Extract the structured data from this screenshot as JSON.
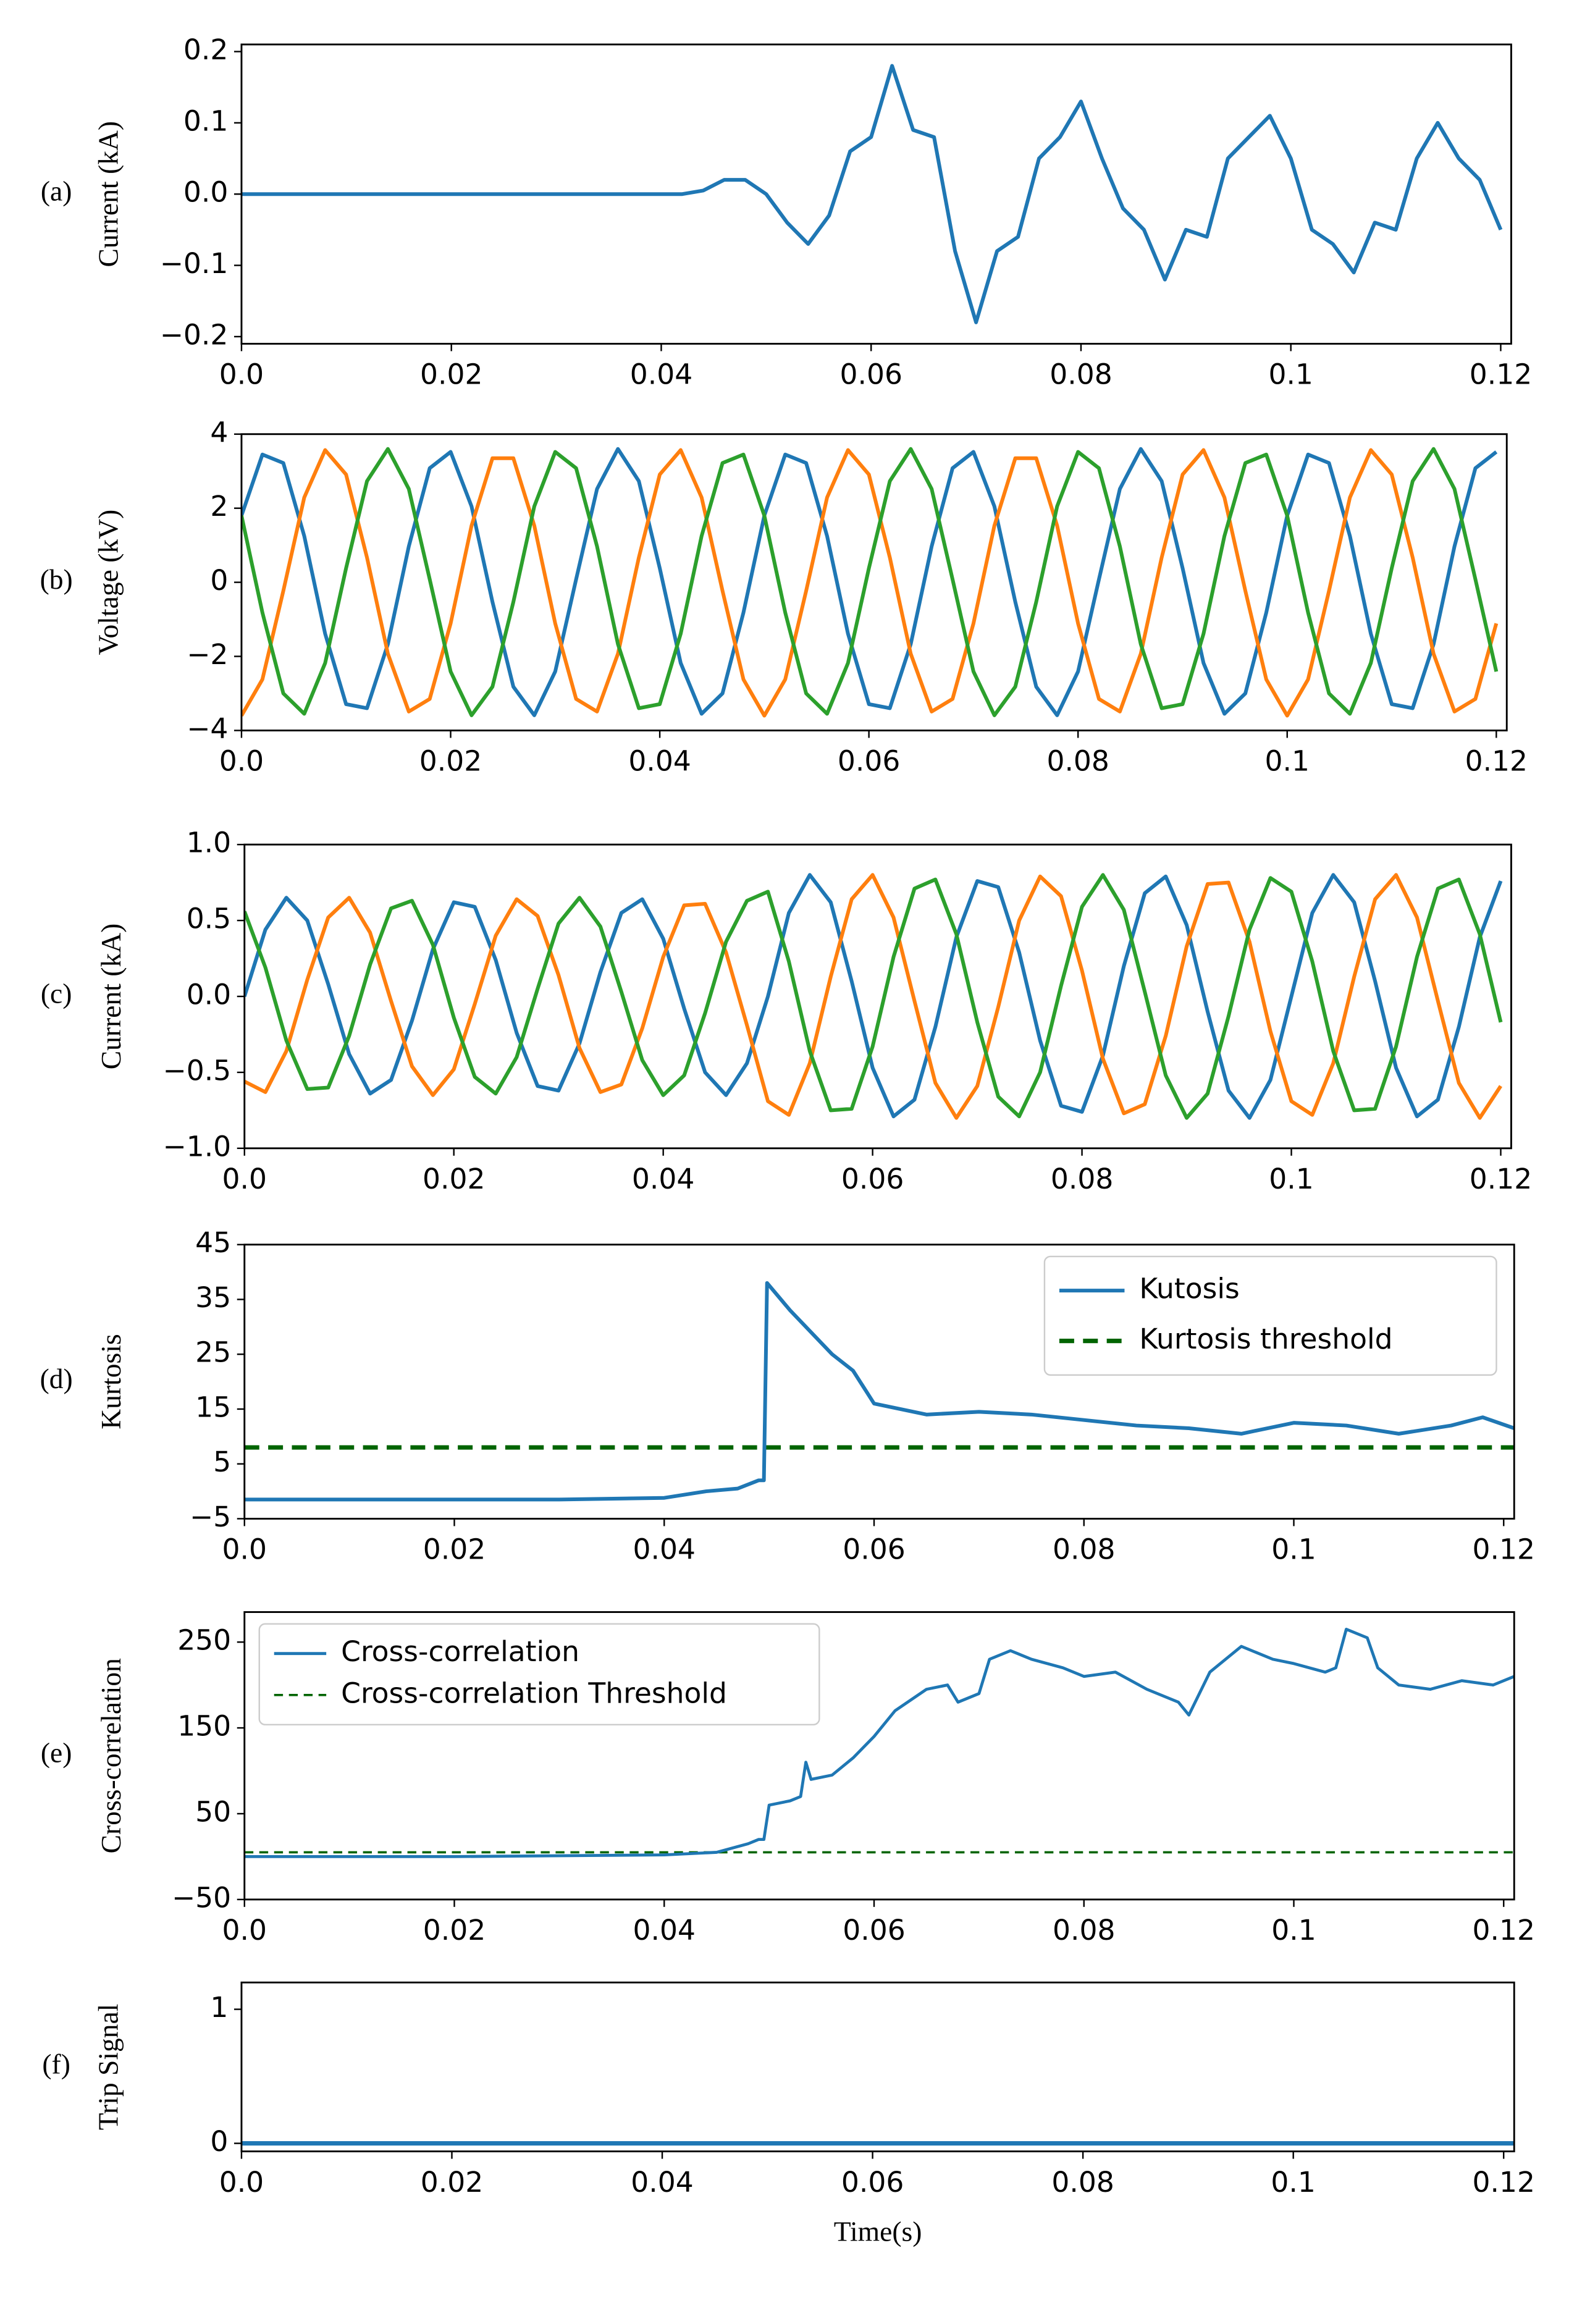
{
  "chart_data": [
    {
      "type": "line",
      "panel_label": "(a)",
      "ylabel": "Current (kA)",
      "xlim": [
        0,
        0.121
      ],
      "xticks": [
        {
          "value": 0,
          "label": "0.0"
        },
        0.02,
        0.04,
        0.06,
        0.08,
        0.1,
        0.12
      ],
      "ylim": [
        -0.21,
        0.21
      ],
      "yticks": [
        {
          "value": -0.2,
          "label": "−0.2"
        },
        {
          "value": -0.1,
          "label": "−0.1"
        },
        {
          "value": 0,
          "label": "0.0"
        },
        0.1,
        0.2
      ],
      "x": [
        0,
        0.002,
        0.004,
        0.006,
        0.008,
        0.01,
        0.012,
        0.014,
        0.016,
        0.018,
        0.02,
        0.022,
        0.024,
        0.026,
        0.028,
        0.03,
        0.032,
        0.034,
        0.036,
        0.038,
        0.04,
        0.042,
        0.044,
        0.046,
        0.048,
        0.05,
        0.052,
        0.054,
        0.056,
        0.058,
        0.06,
        0.062,
        0.064,
        0.066,
        0.068,
        0.07,
        0.072,
        0.074,
        0.076,
        0.078,
        0.08,
        0.082,
        0.084,
        0.086,
        0.088,
        0.09,
        0.092,
        0.094,
        0.096,
        0.098,
        0.1,
        0.102,
        0.104,
        0.106,
        0.108,
        0.11,
        0.112,
        0.114,
        0.116,
        0.118,
        0.12
      ],
      "series": [
        {
          "color": "#1f77b4",
          "values": [
            0,
            0,
            0,
            0,
            0,
            0,
            0,
            0,
            0,
            0,
            0,
            0,
            0,
            0,
            0,
            0,
            0,
            0,
            0,
            0,
            0,
            0,
            0.005,
            0.02,
            0.02,
            0,
            -0.04,
            -0.07,
            -0.03,
            0.06,
            0.08,
            0.18,
            0.09,
            0.08,
            -0.08,
            -0.18,
            -0.08,
            -0.06,
            0.05,
            0.08,
            0.13,
            0.05,
            -0.02,
            -0.05,
            -0.12,
            -0.05,
            -0.06,
            0.05,
            0.08,
            0.11,
            0.05,
            -0.05,
            -0.07,
            -0.11,
            -0.04,
            -0.05,
            0.05,
            0.1,
            0.05,
            0.02,
            -0.05
          ]
        }
      ]
    },
    {
      "type": "line",
      "panel_label": "(b)",
      "ylabel": "Voltage (kV)",
      "xlim": [
        0,
        0.121
      ],
      "xticks": [
        {
          "value": 0,
          "label": "0.0"
        },
        0.02,
        0.04,
        0.06,
        0.08,
        0.1,
        0.12
      ],
      "ylim": [
        -4,
        4
      ],
      "yticks": [
        {
          "value": -4,
          "label": "−4"
        },
        {
          "value": -2,
          "label": "−2"
        },
        0,
        2,
        4
      ],
      "x": [
        0,
        0.002,
        0.004,
        0.006,
        0.008,
        0.01,
        0.012,
        0.014,
        0.016,
        0.018,
        0.02,
        0.022,
        0.024,
        0.026,
        0.028,
        0.03,
        0.032,
        0.034,
        0.036,
        0.038,
        0.04,
        0.042,
        0.044,
        0.046,
        0.048,
        0.05,
        0.052,
        0.054,
        0.056,
        0.058,
        0.06,
        0.062,
        0.064,
        0.066,
        0.068,
        0.07,
        0.072,
        0.074,
        0.076,
        0.078,
        0.08,
        0.082,
        0.084,
        0.086,
        0.088,
        0.09,
        0.092,
        0.094,
        0.096,
        0.098,
        0.1,
        0.102,
        0.104,
        0.106,
        0.108,
        0.11,
        0.112,
        0.114,
        0.116,
        0.118,
        0.12
      ],
      "series": [
        {
          "color": "#1f77b4",
          "values": [
            1.8,
            3.45,
            3.22,
            1.25,
            -1.39,
            -3.29,
            -3.4,
            -1.67,
            0.97,
            3.08,
            3.52,
            2.05,
            -0.53,
            -2.82,
            -3.59,
            -2.41,
            0.08,
            2.52,
            3.6,
            2.73,
            0.38,
            -2.18,
            -3.55,
            -3.0,
            -0.82,
            1.8,
            3.45,
            3.22,
            1.25,
            -1.39,
            -3.29,
            -3.4,
            -1.67,
            0.97,
            3.08,
            3.52,
            2.05,
            -0.53,
            -2.82,
            -3.59,
            -2.41,
            0.08,
            2.52,
            3.6,
            2.73,
            0.38,
            -2.18,
            -3.55,
            -3.0,
            -0.82,
            1.8,
            3.45,
            3.22,
            1.25,
            -1.39,
            -3.29,
            -3.4,
            -1.67,
            0.97,
            3.08,
            3.52
          ]
        },
        {
          "color": "#ff7f0e",
          "values": [
            -3.6,
            -2.62,
            -0.23,
            2.29,
            3.57,
            2.91,
            0.67,
            -1.93,
            -3.49,
            -3.15,
            -1.11,
            1.53,
            3.35,
            3.35,
            1.53,
            -1.11,
            -3.15,
            -3.49,
            -1.93,
            0.67,
            2.91,
            3.57,
            2.29,
            -0.23,
            -2.62,
            -3.6,
            -2.62,
            -0.23,
            2.29,
            3.57,
            2.91,
            0.67,
            -1.93,
            -3.49,
            -3.15,
            -1.11,
            1.53,
            3.35,
            3.35,
            1.53,
            -1.11,
            -3.15,
            -3.49,
            -1.93,
            0.67,
            2.91,
            3.57,
            2.29,
            -0.23,
            -2.62,
            -3.6,
            -2.62,
            -0.23,
            2.29,
            3.57,
            2.91,
            0.67,
            -1.93,
            -3.49,
            -3.15,
            -1.11
          ]
        },
        {
          "color": "#2ca02c",
          "values": [
            1.8,
            -0.82,
            -3.0,
            -3.55,
            -2.18,
            0.38,
            2.73,
            3.6,
            2.52,
            0.08,
            -2.41,
            -3.59,
            -2.82,
            -0.53,
            2.05,
            3.52,
            3.08,
            0.97,
            -1.67,
            -3.4,
            -3.29,
            -1.39,
            1.25,
            3.22,
            3.45,
            1.8,
            -0.82,
            -3.0,
            -3.55,
            -2.18,
            0.38,
            2.73,
            3.6,
            2.52,
            0.08,
            -2.41,
            -3.59,
            -2.82,
            -0.53,
            2.05,
            3.52,
            3.08,
            0.97,
            -1.67,
            -3.4,
            -3.29,
            -1.39,
            1.25,
            3.22,
            3.45,
            1.8,
            -0.82,
            -3.0,
            -3.55,
            -2.18,
            0.38,
            2.73,
            3.6,
            2.52,
            0.08,
            -2.41
          ]
        }
      ]
    },
    {
      "type": "line",
      "panel_label": "(c)",
      "ylabel": "Current (kA)",
      "xlim": [
        0,
        0.121
      ],
      "xticks": [
        {
          "value": 0,
          "label": "0.0"
        },
        0.02,
        0.04,
        0.06,
        0.08,
        0.1,
        0.12
      ],
      "ylim": [
        -1,
        1
      ],
      "yticks": [
        {
          "value": -1,
          "label": "−1.0"
        },
        {
          "value": -0.5,
          "label": "−0.5"
        },
        {
          "value": 0,
          "label": "0.0"
        },
        0.5,
        {
          "value": 1,
          "label": "1.0"
        }
      ],
      "x": [
        0,
        0.002,
        0.004,
        0.006,
        0.008,
        0.01,
        0.012,
        0.014,
        0.016,
        0.018,
        0.02,
        0.022,
        0.024,
        0.026,
        0.028,
        0.03,
        0.032,
        0.034,
        0.036,
        0.038,
        0.04,
        0.042,
        0.044,
        0.046,
        0.048,
        0.05,
        0.052,
        0.054,
        0.056,
        0.058,
        0.06,
        0.062,
        0.064,
        0.066,
        0.068,
        0.07,
        0.072,
        0.074,
        0.076,
        0.078,
        0.08,
        0.082,
        0.084,
        0.086,
        0.088,
        0.09,
        0.092,
        0.094,
        0.096,
        0.098,
        0.1,
        0.102,
        0.104,
        0.106,
        0.108,
        0.11,
        0.112,
        0.114,
        0.116,
        0.118,
        0.12
      ],
      "series": [
        {
          "color": "#1f77b4",
          "values": [
            0,
            0.44,
            0.65,
            0.5,
            0.08,
            -0.38,
            -0.64,
            -0.55,
            -0.16,
            0.31,
            0.62,
            0.59,
            0.24,
            -0.24,
            -0.59,
            -0.62,
            -0.31,
            0.16,
            0.55,
            0.64,
            0.38,
            -0.08,
            -0.5,
            -0.65,
            -0.44,
            0,
            0.55,
            0.8,
            0.62,
            0.1,
            -0.47,
            -0.79,
            -0.68,
            -0.2,
            0.39,
            0.76,
            0.72,
            0.29,
            -0.29,
            -0.72,
            -0.76,
            -0.39,
            0.2,
            0.68,
            0.79,
            0.47,
            -0.1,
            -0.62,
            -0.8,
            -0.55,
            0,
            0.55,
            0.8,
            0.62,
            0.1,
            -0.47,
            -0.79,
            -0.68,
            -0.2,
            0.39,
            0.76
          ]
        },
        {
          "color": "#ff7f0e",
          "values": [
            -0.56,
            -0.63,
            -0.36,
            0.11,
            0.52,
            0.65,
            0.42,
            -0.03,
            -0.46,
            -0.65,
            -0.48,
            -0.05,
            0.4,
            0.64,
            0.53,
            0.14,
            -0.34,
            -0.63,
            -0.58,
            -0.21,
            0.26,
            0.6,
            0.61,
            0.29,
            -0.19,
            -0.69,
            -0.78,
            -0.44,
            0.13,
            0.64,
            0.8,
            0.52,
            -0.03,
            -0.57,
            -0.8,
            -0.59,
            -0.07,
            0.5,
            0.79,
            0.66,
            0.17,
            -0.41,
            -0.77,
            -0.71,
            -0.26,
            0.33,
            0.74,
            0.75,
            0.36,
            -0.23,
            -0.69,
            -0.78,
            -0.44,
            0.13,
            0.64,
            0.8,
            0.52,
            -0.03,
            -0.57,
            -0.8,
            -0.59
          ]
        },
        {
          "color": "#2ca02c",
          "values": [
            0.56,
            0.19,
            -0.29,
            -0.61,
            -0.6,
            -0.26,
            0.21,
            0.58,
            0.63,
            0.34,
            -0.14,
            -0.53,
            -0.64,
            -0.4,
            0.05,
            0.48,
            0.65,
            0.46,
            0.03,
            -0.42,
            -0.65,
            -0.52,
            -0.11,
            0.36,
            0.63,
            0.69,
            0.23,
            -0.36,
            -0.75,
            -0.74,
            -0.33,
            0.26,
            0.71,
            0.77,
            0.41,
            -0.17,
            -0.66,
            -0.79,
            -0.5,
            0.07,
            0.59,
            0.8,
            0.57,
            0.03,
            -0.52,
            -0.8,
            -0.64,
            -0.13,
            0.44,
            0.78,
            0.69,
            0.23,
            -0.36,
            -0.75,
            -0.74,
            -0.33,
            0.26,
            0.71,
            0.77,
            0.41,
            -0.17
          ]
        }
      ]
    },
    {
      "type": "line",
      "panel_label": "(d)",
      "ylabel": "Kurtosis",
      "legend": "upper right",
      "xlim": [
        0,
        0.121
      ],
      "xticks": [
        {
          "value": 0,
          "label": "0.0"
        },
        0.02,
        0.04,
        0.06,
        0.08,
        0.1,
        0.12
      ],
      "ylim": [
        -5,
        45
      ],
      "yticks": [
        {
          "value": -5,
          "label": "−5"
        },
        5,
        15,
        25,
        35,
        45
      ],
      "x": [
        0,
        0.01,
        0.02,
        0.03,
        0.04,
        0.044,
        0.047,
        0.049,
        0.0495,
        0.0498,
        0.052,
        0.054,
        0.056,
        0.058,
        0.06,
        0.065,
        0.07,
        0.075,
        0.08,
        0.085,
        0.09,
        0.095,
        0.1,
        0.105,
        0.11,
        0.115,
        0.118,
        0.121
      ],
      "series": [
        {
          "name": "Kutosis",
          "color": "#1f77b4",
          "values": [
            -1.5,
            -1.5,
            -1.5,
            -1.5,
            -1.2,
            0,
            0.5,
            2,
            2,
            38,
            33,
            29,
            25,
            22,
            16,
            14,
            14.5,
            14,
            13,
            12,
            11.5,
            10.5,
            12.5,
            12,
            10.5,
            12,
            13.5,
            11.5
          ]
        }
      ],
      "hlines": [
        {
          "name": "Kurtosis threshold",
          "value": 8,
          "color": "#006400",
          "linestyle": "dashed"
        }
      ]
    },
    {
      "type": "line",
      "panel_label": "(e)",
      "ylabel": "Cross-correlation",
      "legend": "upper left",
      "xlim": [
        0,
        0.121
      ],
      "xticks": [
        {
          "value": 0,
          "label": "0.0"
        },
        0.02,
        0.04,
        0.06,
        0.08,
        0.1,
        0.12
      ],
      "ylim": [
        -50,
        285
      ],
      "yticks": [
        {
          "value": -50,
          "label": "−50"
        },
        50,
        150,
        250
      ],
      "x": [
        0,
        0.01,
        0.02,
        0.03,
        0.04,
        0.045,
        0.048,
        0.049,
        0.0495,
        0.05,
        0.052,
        0.053,
        0.0535,
        0.054,
        0.056,
        0.058,
        0.06,
        0.062,
        0.065,
        0.067,
        0.068,
        0.07,
        0.071,
        0.073,
        0.075,
        0.078,
        0.08,
        0.083,
        0.086,
        0.089,
        0.09,
        0.092,
        0.095,
        0.098,
        0.1,
        0.103,
        0.104,
        0.105,
        0.107,
        0.108,
        0.11,
        0.113,
        0.116,
        0.119,
        0.121
      ],
      "series": [
        {
          "name": "Cross-correlation",
          "color": "#1f77b4",
          "values": [
            0,
            0,
            0,
            1,
            2,
            5,
            15,
            20,
            20,
            60,
            65,
            70,
            110,
            90,
            95,
            115,
            140,
            170,
            195,
            200,
            180,
            190,
            230,
            240,
            230,
            220,
            210,
            215,
            195,
            180,
            165,
            215,
            245,
            230,
            225,
            215,
            220,
            265,
            255,
            220,
            200,
            195,
            205,
            200,
            210
          ]
        }
      ],
      "hlines": [
        {
          "name": "Cross-correlation Threshold",
          "value": 5,
          "color": "#006400",
          "linestyle": "dashed"
        }
      ]
    },
    {
      "type": "line",
      "panel_label": "(f)",
      "ylabel": "Trip Signal",
      "xlabel": "Time(s)",
      "xlim": [
        0,
        0.121
      ],
      "xticks": [
        {
          "value": 0,
          "label": "0.0"
        },
        0.02,
        0.04,
        0.06,
        0.08,
        0.1,
        0.12
      ],
      "ylim": [
        -0.06,
        1.2
      ],
      "yticks": [
        0,
        1
      ],
      "x": [
        0,
        0.121
      ],
      "series": [
        {
          "color": "#1f77b4",
          "values": [
            0,
            0
          ]
        }
      ]
    }
  ]
}
